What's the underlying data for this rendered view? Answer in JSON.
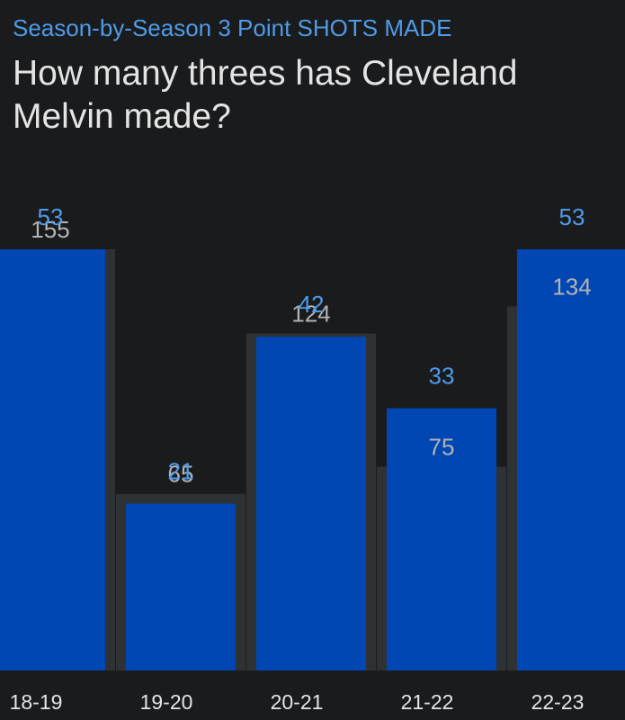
{
  "header": {
    "subtitle": "Season-by-Season 3 Point SHOTS MADE",
    "title": "How many threes has Cleveland Melvin made?"
  },
  "colors": {
    "background": "#1a1b1d",
    "made_bar": "#0047b3",
    "attempt_bar": "#2f3235",
    "made_label": "#4f9be8",
    "attempt_label": "#b3b3b3",
    "axis_label": "#e4e4e4"
  },
  "chart_data": {
    "type": "bar",
    "categories": [
      "18-19",
      "19-20",
      "20-21",
      "21-22",
      "22-23"
    ],
    "series": [
      {
        "values": [
          155,
          65,
          124,
          75,
          134
        ]
      },
      {
        "values": [
          53,
          21,
          42,
          33,
          53
        ]
      }
    ],
    "legend": "none",
    "grid": false
  }
}
